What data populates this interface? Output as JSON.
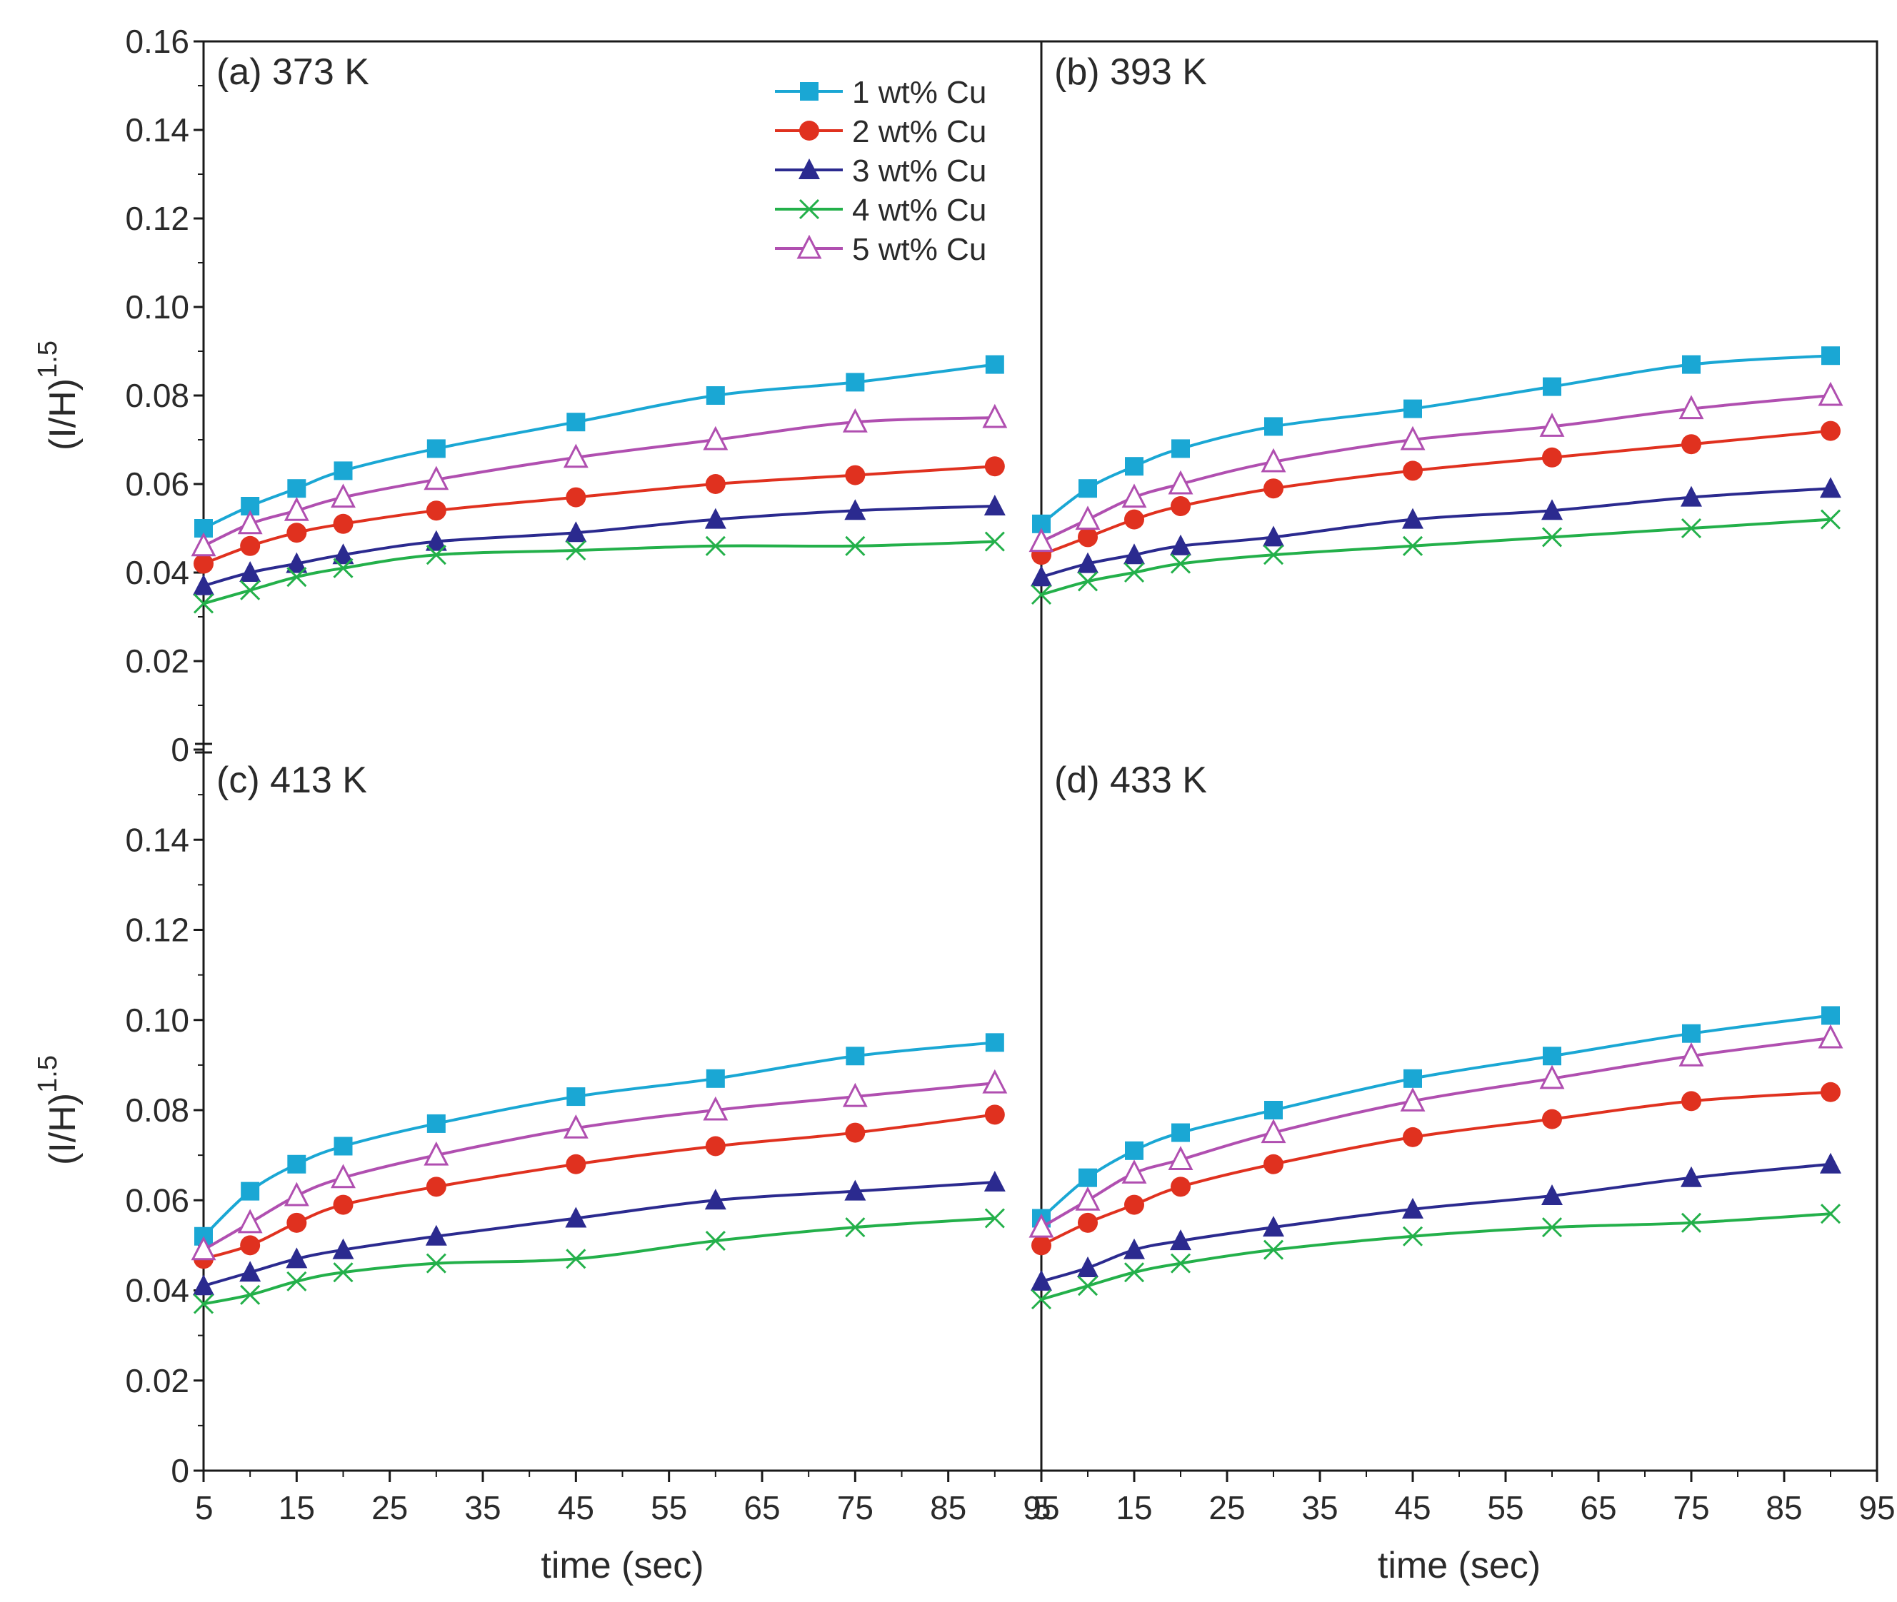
{
  "chart_data": {
    "type": "line",
    "x": [
      5,
      10,
      15,
      20,
      30,
      45,
      60,
      75,
      90
    ],
    "xlabel": "time (sec)",
    "ylabel_base": "(I/H)",
    "ylabel_exp": "1.5",
    "xlim": [
      5,
      95
    ],
    "ylim": [
      0,
      0.16
    ],
    "x_ticks": [
      "5",
      "15",
      "25",
      "35",
      "45",
      "55",
      "65",
      "75",
      "85",
      "95"
    ],
    "y_ticks_top": [
      "0.16",
      "0.14",
      "0.12",
      "0.10",
      "0.08",
      "0.06",
      "0.04",
      "0.02",
      "0"
    ],
    "y_ticks_bottom": [
      "0.14",
      "0.12",
      "0.10",
      "0.08",
      "0.06",
      "0.04",
      "0.02",
      "0"
    ],
    "legend": [
      {
        "name": "1 wt% Cu",
        "color": "#1aa7d4",
        "marker": "square"
      },
      {
        "name": "2 wt% Cu",
        "color": "#e0311f",
        "marker": "circle"
      },
      {
        "name": "3 wt% Cu",
        "color": "#2b2a8f",
        "marker": "triangle"
      },
      {
        "name": "4 wt% Cu",
        "color": "#23b04a",
        "marker": "cross"
      },
      {
        "name": "5 wt% Cu",
        "color": "#b04fb0",
        "marker": "triangle-open"
      }
    ],
    "panels": [
      {
        "label": "(a) 373 K",
        "series": [
          {
            "name": "1 wt% Cu",
            "values": [
              0.05,
              0.055,
              0.059,
              0.063,
              0.068,
              0.074,
              0.08,
              0.083,
              0.087
            ]
          },
          {
            "name": "2 wt% Cu",
            "values": [
              0.042,
              0.046,
              0.049,
              0.051,
              0.054,
              0.057,
              0.06,
              0.062,
              0.064
            ]
          },
          {
            "name": "3 wt% Cu",
            "values": [
              0.037,
              0.04,
              0.042,
              0.044,
              0.047,
              0.049,
              0.052,
              0.054,
              0.055
            ]
          },
          {
            "name": "4 wt% Cu",
            "values": [
              0.033,
              0.036,
              0.039,
              0.041,
              0.044,
              0.045,
              0.046,
              0.046,
              0.047
            ]
          },
          {
            "name": "5 wt% Cu",
            "values": [
              0.046,
              0.051,
              0.054,
              0.057,
              0.061,
              0.066,
              0.07,
              0.074,
              0.075
            ]
          }
        ]
      },
      {
        "label": "(b) 393 K",
        "series": [
          {
            "name": "1 wt% Cu",
            "values": [
              0.051,
              0.059,
              0.064,
              0.068,
              0.073,
              0.077,
              0.082,
              0.087,
              0.089
            ]
          },
          {
            "name": "2 wt% Cu",
            "values": [
              0.044,
              0.048,
              0.052,
              0.055,
              0.059,
              0.063,
              0.066,
              0.069,
              0.072
            ]
          },
          {
            "name": "3 wt% Cu",
            "values": [
              0.039,
              0.042,
              0.044,
              0.046,
              0.048,
              0.052,
              0.054,
              0.057,
              0.059
            ]
          },
          {
            "name": "4 wt% Cu",
            "values": [
              0.035,
              0.038,
              0.04,
              0.042,
              0.044,
              0.046,
              0.048,
              0.05,
              0.052
            ]
          },
          {
            "name": "5 wt% Cu",
            "values": [
              0.047,
              0.052,
              0.057,
              0.06,
              0.065,
              0.07,
              0.073,
              0.077,
              0.08
            ]
          }
        ]
      },
      {
        "label": "(c) 413 K",
        "series": [
          {
            "name": "1 wt% Cu",
            "values": [
              0.052,
              0.062,
              0.068,
              0.072,
              0.077,
              0.083,
              0.087,
              0.092,
              0.095
            ]
          },
          {
            "name": "2 wt% Cu",
            "values": [
              0.047,
              0.05,
              0.055,
              0.059,
              0.063,
              0.068,
              0.072,
              0.075,
              0.079
            ]
          },
          {
            "name": "3 wt% Cu",
            "values": [
              0.041,
              0.044,
              0.047,
              0.049,
              0.052,
              0.056,
              0.06,
              0.062,
              0.064
            ]
          },
          {
            "name": "4 wt% Cu",
            "values": [
              0.037,
              0.039,
              0.042,
              0.044,
              0.046,
              0.047,
              0.051,
              0.054,
              0.056
            ]
          },
          {
            "name": "5 wt% Cu",
            "values": [
              0.049,
              0.055,
              0.061,
              0.065,
              0.07,
              0.076,
              0.08,
              0.083,
              0.086
            ]
          }
        ]
      },
      {
        "label": "(d) 433 K",
        "series": [
          {
            "name": "1 wt% Cu",
            "values": [
              0.056,
              0.065,
              0.071,
              0.075,
              0.08,
              0.087,
              0.092,
              0.097,
              0.101
            ]
          },
          {
            "name": "2 wt% Cu",
            "values": [
              0.05,
              0.055,
              0.059,
              0.063,
              0.068,
              0.074,
              0.078,
              0.082,
              0.084
            ]
          },
          {
            "name": "3 wt% Cu",
            "values": [
              0.042,
              0.045,
              0.049,
              0.051,
              0.054,
              0.058,
              0.061,
              0.065,
              0.068
            ]
          },
          {
            "name": "4 wt% Cu",
            "values": [
              0.038,
              0.041,
              0.044,
              0.046,
              0.049,
              0.052,
              0.054,
              0.055,
              0.057
            ]
          },
          {
            "name": "5 wt% Cu",
            "values": [
              0.054,
              0.06,
              0.066,
              0.069,
              0.075,
              0.082,
              0.087,
              0.092,
              0.096
            ]
          }
        ]
      }
    ]
  }
}
